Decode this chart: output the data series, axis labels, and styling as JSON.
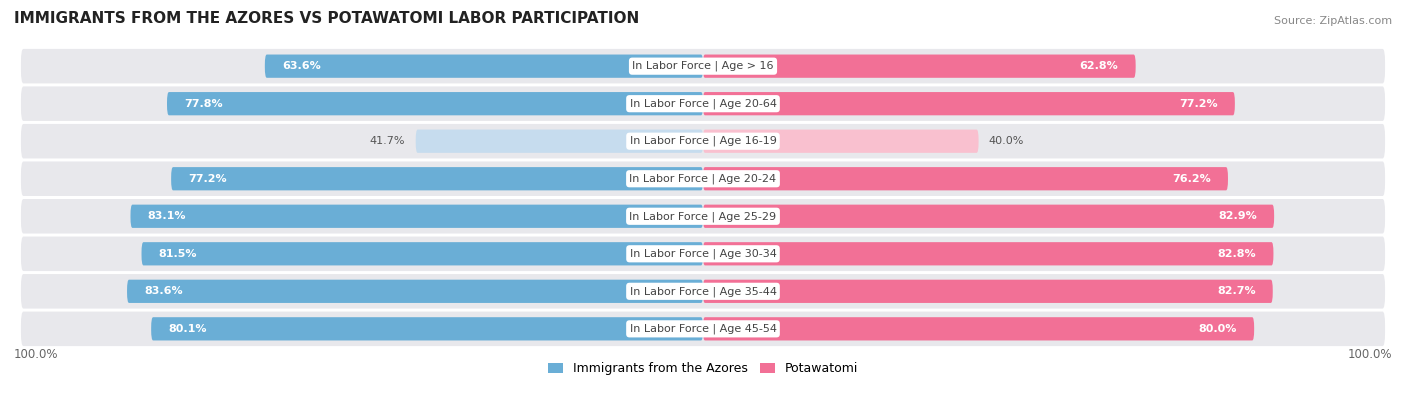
{
  "title": "IMMIGRANTS FROM THE AZORES VS POTAWATOMI LABOR PARTICIPATION",
  "source": "Source: ZipAtlas.com",
  "categories": [
    "In Labor Force | Age > 16",
    "In Labor Force | Age 20-64",
    "In Labor Force | Age 16-19",
    "In Labor Force | Age 20-24",
    "In Labor Force | Age 25-29",
    "In Labor Force | Age 30-34",
    "In Labor Force | Age 35-44",
    "In Labor Force | Age 45-54"
  ],
  "azores_values": [
    63.6,
    77.8,
    41.7,
    77.2,
    83.1,
    81.5,
    83.6,
    80.1
  ],
  "potawatomi_values": [
    62.8,
    77.2,
    40.0,
    76.2,
    82.9,
    82.8,
    82.7,
    80.0
  ],
  "azores_color": "#6aaed6",
  "azores_light_color": "#c6dcee",
  "potawatomi_color": "#f27096",
  "potawatomi_light_color": "#f9c0cf",
  "bar_height": 0.62,
  "row_bg_color": "#e8e8ec",
  "label_font_size": 8.0,
  "title_font_size": 11,
  "max_value": 100.0,
  "legend_azores": "Immigrants from the Azores",
  "legend_potawatomi": "Potawatomi"
}
